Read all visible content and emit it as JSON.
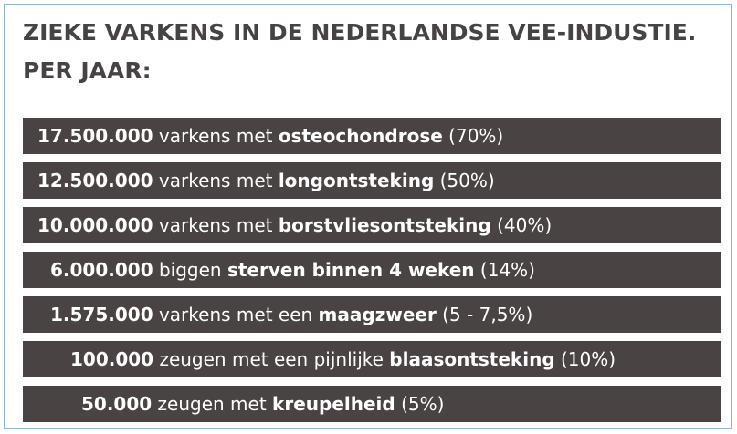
{
  "title": {
    "line1": "ZIEKE VARKENS IN DE NEDERLANDSE VEE-INDUSTIE.",
    "line2": "PER JAAR:"
  },
  "colors": {
    "row_background": "#4a4344",
    "row_text": "#ffffff",
    "title_text": "#484343",
    "frame_border": "#8fb6d8"
  },
  "rows": [
    {
      "number": "17.500.000",
      "middle": " varkens met ",
      "disease": "osteochondrose",
      "percent": " (70%)"
    },
    {
      "number": "12.500.000",
      "middle": " varkens met ",
      "disease": "longontsteking",
      "percent": " (50%)"
    },
    {
      "number": "10.000.000",
      "middle": " varkens met ",
      "disease": "borstvliesontsteking",
      "percent": " (40%)"
    },
    {
      "number": "6.000.000",
      "middle": " biggen ",
      "disease": "sterven binnen 4 weken",
      "percent": " (14%)"
    },
    {
      "number": "1.575.000",
      "middle": " varkens met een ",
      "disease": "maagzweer",
      "percent": " (5 - 7,5%)"
    },
    {
      "number": "100.000",
      "middle": " zeugen met een pijnlijke ",
      "disease": "blaasontsteking",
      "percent": " (10%)"
    },
    {
      "number": "50.000",
      "middle": " zeugen met ",
      "disease": "kreupelheid",
      "percent": " (5%)"
    }
  ]
}
